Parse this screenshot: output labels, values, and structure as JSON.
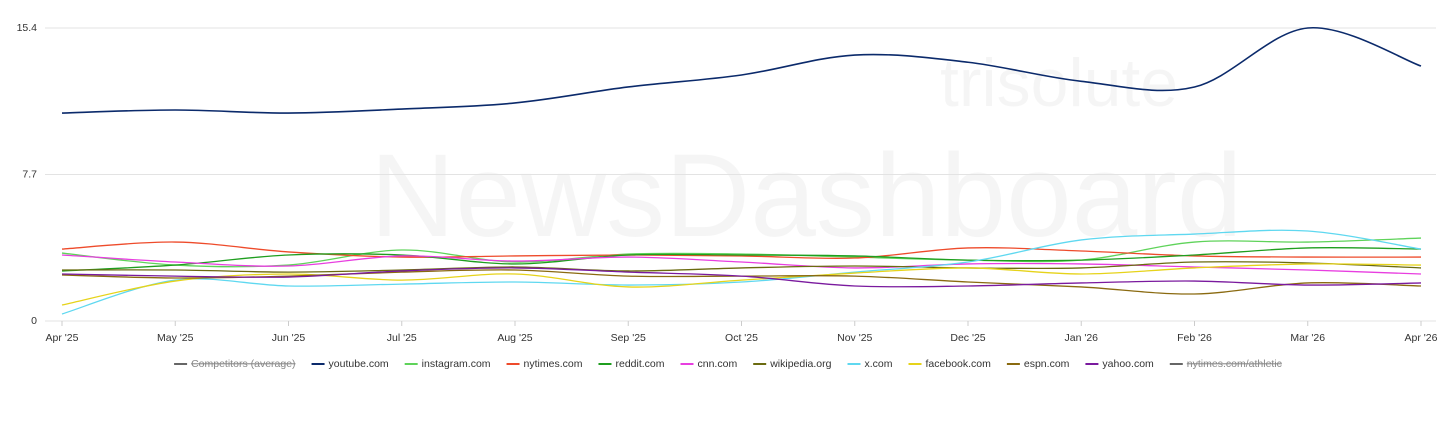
{
  "watermark": {
    "brand": "trisolute",
    "product": "NewsDashboard"
  },
  "chart_data": {
    "type": "line",
    "categories": [
      "Apr '25",
      "May '25",
      "Jun '25",
      "Jul '25",
      "Aug '25",
      "Sep '25",
      "Oct '25",
      "Nov '25",
      "Dec '25",
      "Jan '26",
      "Feb '26",
      "Mar '26",
      "Apr '26"
    ],
    "ylim": [
      0,
      15.4
    ],
    "yticks": [
      0,
      7.7,
      15.4
    ],
    "grid": true,
    "legend": "bottom",
    "series": [
      {
        "name": "Competitors (average)",
        "color": "#666666",
        "hidden": true,
        "values": [
          null,
          null,
          null,
          null,
          null,
          null,
          null,
          null,
          null,
          null,
          null,
          null,
          null
        ]
      },
      {
        "name": "youtube.com",
        "color": "#0b2a6b",
        "values": [
          10.93,
          11.09,
          10.93,
          11.14,
          11.46,
          12.3,
          12.93,
          13.98,
          13.6,
          12.6,
          12.3,
          15.4,
          13.4
        ]
      },
      {
        "name": "instagram.com",
        "color": "#5fd35a",
        "values": [
          3.57,
          2.94,
          2.94,
          3.73,
          3.1,
          3.52,
          3.52,
          3.36,
          3.2,
          3.2,
          4.15,
          4.15,
          4.36
        ]
      },
      {
        "name": "nytimes.com",
        "color": "#ee4b2b",
        "values": [
          3.78,
          4.15,
          3.63,
          3.36,
          3.42,
          3.47,
          3.42,
          3.31,
          3.84,
          3.68,
          3.42,
          3.36,
          3.36
        ]
      },
      {
        "name": "reddit.com",
        "color": "#1f9e1f",
        "values": [
          2.63,
          2.94,
          3.47,
          3.47,
          3.0,
          3.47,
          3.47,
          3.42,
          3.2,
          3.2,
          3.47,
          3.84,
          3.78
        ]
      },
      {
        "name": "cnn.com",
        "color": "#e83ee0",
        "values": [
          3.47,
          3.1,
          2.89,
          3.42,
          3.15,
          3.36,
          3.1,
          2.79,
          3.0,
          3.0,
          2.84,
          2.68,
          2.47
        ]
      },
      {
        "name": "wikipedia.org",
        "color": "#6b6b10",
        "values": [
          2.68,
          2.68,
          2.57,
          2.68,
          2.84,
          2.63,
          2.79,
          2.89,
          2.79,
          2.79,
          3.1,
          3.05,
          2.79
        ]
      },
      {
        "name": "x.com",
        "color": "#5fd8f0",
        "values": [
          0.37,
          2.15,
          1.84,
          1.94,
          2.05,
          1.89,
          2.05,
          2.57,
          3.1,
          4.26,
          4.57,
          4.73,
          3.78
        ]
      },
      {
        "name": "facebook.com",
        "color": "#e6d31a",
        "values": [
          0.84,
          2.1,
          2.47,
          2.15,
          2.47,
          1.79,
          2.15,
          2.52,
          2.79,
          2.47,
          2.79,
          3.0,
          2.94
        ]
      },
      {
        "name": "espn.com",
        "color": "#8a6a10",
        "values": [
          2.42,
          2.26,
          2.36,
          2.57,
          2.68,
          2.36,
          2.36,
          2.36,
          2.05,
          1.79,
          1.42,
          2.0,
          1.84
        ]
      },
      {
        "name": "yahoo.com",
        "color": "#7a1a9e",
        "values": [
          2.47,
          2.36,
          2.31,
          2.63,
          2.79,
          2.57,
          2.36,
          1.84,
          1.84,
          2.0,
          2.1,
          1.89,
          2.0
        ]
      },
      {
        "name": "nytimes.com/athletic",
        "color": "#555555",
        "hidden": true,
        "values": [
          null,
          null,
          null,
          null,
          null,
          null,
          null,
          null,
          null,
          null,
          null,
          null,
          null
        ]
      }
    ]
  }
}
